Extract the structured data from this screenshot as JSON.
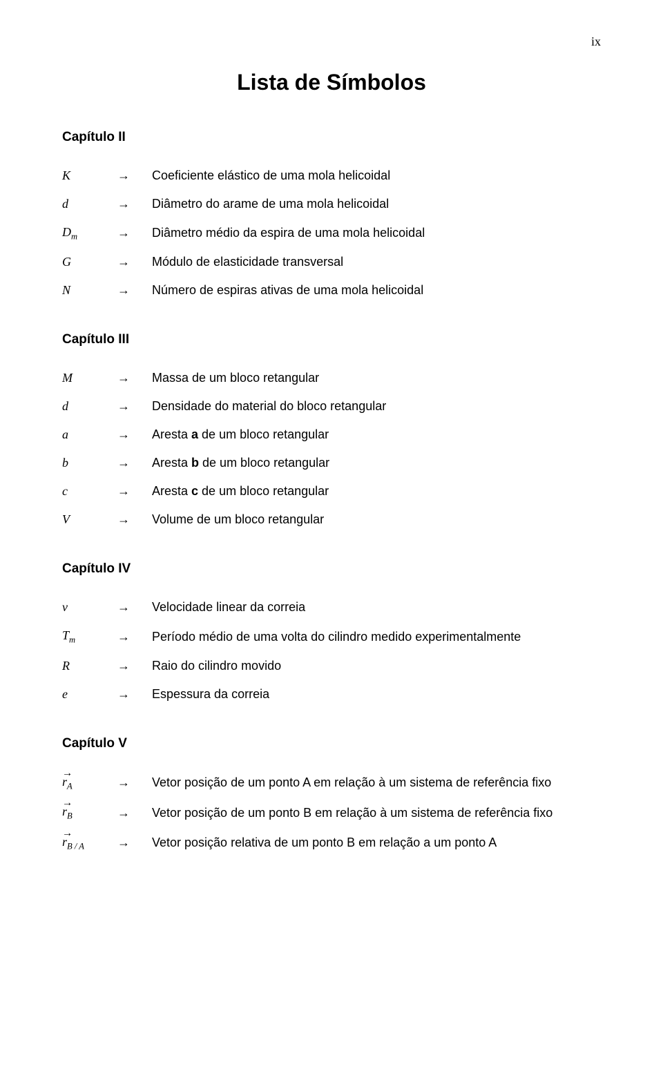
{
  "page_number": "ix",
  "title": "Lista de Símbolos",
  "arrow_glyph": "→",
  "chapters": {
    "c2": {
      "heading": "Capítulo II",
      "rows": {
        "r0": {
          "sym": "K",
          "desc": "Coeficiente elástico de uma mola helicoidal"
        },
        "r1": {
          "sym": "d",
          "desc": "Diâmetro do arame de uma mola helicoidal"
        },
        "r2": {
          "sym": "D",
          "sub": "m",
          "desc": "Diâmetro médio da espira de uma mola helicoidal"
        },
        "r3": {
          "sym": "G",
          "desc": "Módulo de elasticidade transversal"
        },
        "r4": {
          "sym": "N",
          "desc": "Número de espiras ativas de uma mola helicoidal"
        }
      }
    },
    "c3": {
      "heading": "Capítulo III",
      "rows": {
        "r0": {
          "sym": "M",
          "desc": "Massa de um bloco retangular"
        },
        "r1": {
          "sym": "d",
          "desc": "Densidade do material do bloco retangular"
        },
        "r2": {
          "sym": "a",
          "desc_pre": "Aresta ",
          "bold": "a",
          "desc_post": " de um bloco retangular"
        },
        "r3": {
          "sym": "b",
          "desc_pre": "Aresta ",
          "bold": "b",
          "desc_post": " de um bloco retangular"
        },
        "r4": {
          "sym": "c",
          "desc_pre": "Aresta ",
          "bold": "c",
          "desc_post": " de um bloco retangular"
        },
        "r5": {
          "sym": "V",
          "desc": "Volume de um bloco retangular"
        }
      }
    },
    "c4": {
      "heading": "Capítulo IV",
      "rows": {
        "r0": {
          "sym": "v",
          "desc": "Velocidade linear da correia"
        },
        "r1": {
          "sym": "T",
          "sub": "m",
          "desc": "Período médio de uma volta do cilindro medido experimentalmente"
        },
        "r2": {
          "sym": "R",
          "desc": "Raio do cilindro movido"
        },
        "r3": {
          "sym": "e",
          "desc": "Espessura da correia"
        }
      }
    },
    "c5": {
      "heading": "Capítulo V",
      "rows": {
        "r0": {
          "sym": "r",
          "sub": "A",
          "vec": true,
          "desc": "Vetor posição de um ponto A em relação à um sistema de referência fixo"
        },
        "r1": {
          "sym": "r",
          "sub": "B",
          "vec": true,
          "desc": "Vetor posição de um ponto B em relação à um sistema de referência fixo"
        },
        "r2": {
          "sym": "r",
          "sub": "B / A",
          "vec": true,
          "desc": "Vetor posição relativa de um ponto B em relação a um ponto A"
        }
      }
    }
  }
}
